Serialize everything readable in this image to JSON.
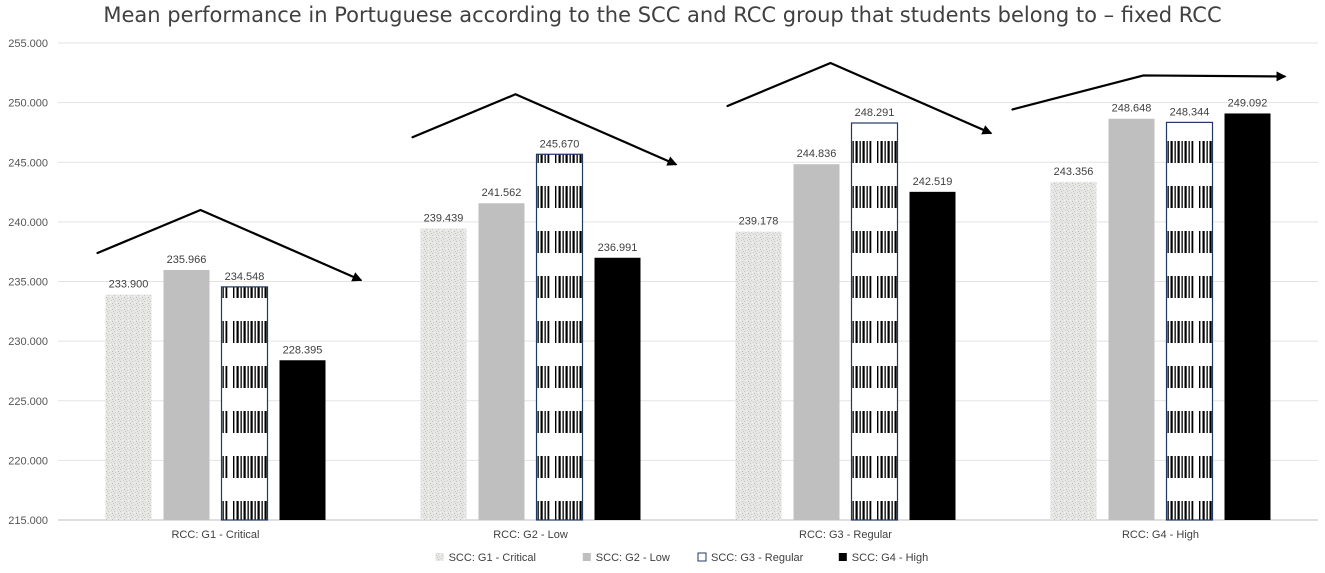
{
  "chart_data": {
    "type": "bar",
    "title": "Mean performance in Portuguese according to the SCC and RCC group that students belong to – fixed RCC",
    "xlabel": "",
    "ylabel": "",
    "categories": [
      "RCC: G1 - Critical",
      "RCC: G2 - Low",
      "RCC: G3 - Regular",
      "RCC: G4 - High"
    ],
    "series": [
      {
        "name": "SCC: G1 - Critical",
        "values": [
          233.9,
          239.439,
          239.178,
          243.356
        ],
        "labels": [
          "233.900",
          "239.439",
          "239.178",
          "243.356"
        ],
        "color": "#e4e4e2",
        "pattern": "speckled"
      },
      {
        "name": "SCC: G2 - Low",
        "values": [
          235.966,
          241.562,
          244.836,
          248.648
        ],
        "labels": [
          "235.966",
          "241.562",
          "244.836",
          "248.648"
        ],
        "color": "#bfbfbf",
        "pattern": "solid"
      },
      {
        "name": "SCC: G3 - Regular",
        "values": [
          234.548,
          245.67,
          248.291,
          248.344
        ],
        "labels": [
          "234.548",
          "245.670",
          "248.291",
          "248.344"
        ],
        "color": "#1f3864",
        "pattern": "barcode"
      },
      {
        "name": "SCC: G4 - High",
        "values": [
          228.395,
          236.991,
          242.519,
          249.092
        ],
        "labels": [
          "228.395",
          "236.991",
          "242.519",
          "249.092"
        ],
        "color": "#000000",
        "pattern": "solid"
      }
    ],
    "ylim": [
      215,
      255
    ],
    "yticks": [
      215,
      220,
      225,
      230,
      235,
      240,
      245,
      250,
      255
    ],
    "ytick_labels": [
      "215.000",
      "220.000",
      "225.000",
      "230.000",
      "235.000",
      "240.000",
      "245.000",
      "250.000",
      "255.000"
    ],
    "grid": true,
    "legend_position": "bottom",
    "trend_arrows": [
      {
        "category": "RCC: G1 - Critical",
        "shape": "rise-then-fall"
      },
      {
        "category": "RCC: G2 - Low",
        "shape": "rise-then-fall"
      },
      {
        "category": "RCC: G3 - Regular",
        "shape": "rise-then-fall"
      },
      {
        "category": "RCC: G4 - High",
        "shape": "rise-then-flat"
      }
    ]
  }
}
